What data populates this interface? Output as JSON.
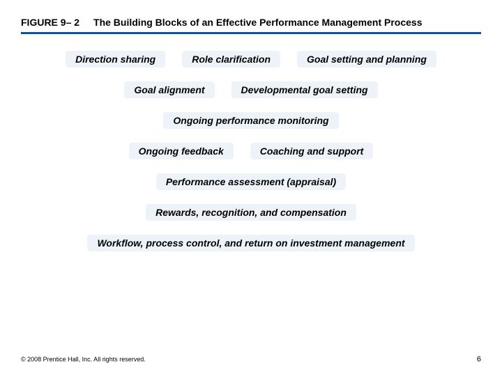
{
  "header": {
    "figure_label": "FIGURE 9– 2",
    "title": "The Building Blocks of an Effective Performance Management Process",
    "rule_color": "#0b5599"
  },
  "blocks": {
    "background_color": "#eef3f9",
    "text_color": "#000000",
    "font_size_pt": 14,
    "rows": [
      [
        "Direction sharing",
        "Role clarification",
        "Goal setting and planning"
      ],
      [
        "Goal alignment",
        "Developmental goal setting"
      ],
      [
        "Ongoing performance monitoring"
      ],
      [
        "Ongoing feedback",
        "Coaching and support"
      ],
      [
        "Performance assessment (appraisal)"
      ],
      [
        "Rewards, recognition, and compensation"
      ],
      [
        "Workflow, process control, and return on investment management"
      ]
    ]
  },
  "footer": {
    "copyright": "© 2008 Prentice Hall, Inc. All rights reserved.",
    "page_number": "6"
  }
}
